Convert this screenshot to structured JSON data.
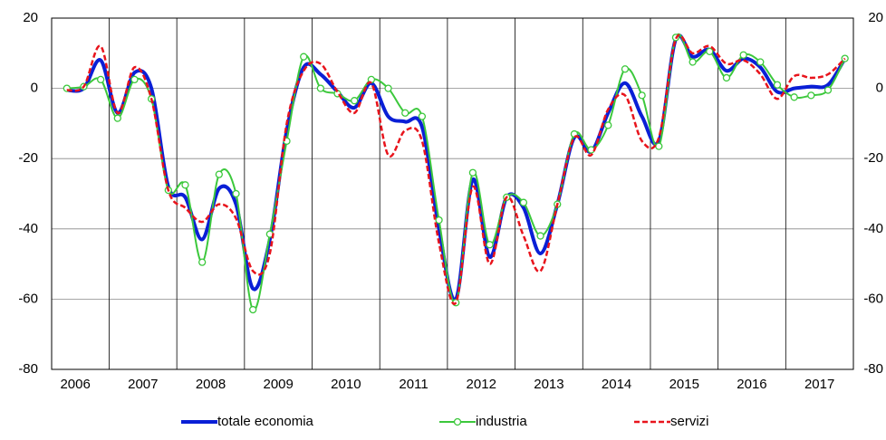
{
  "chart_data": {
    "type": "line",
    "x": [
      2006.375,
      2006.625,
      2006.875,
      2007.125,
      2007.375,
      2007.625,
      2007.875,
      2008.125,
      2008.375,
      2008.625,
      2008.875,
      2009.125,
      2009.375,
      2009.625,
      2009.875,
      2010.125,
      2010.375,
      2010.625,
      2010.875,
      2011.125,
      2011.375,
      2011.625,
      2011.875,
      2012.125,
      2012.375,
      2012.625,
      2012.875,
      2013.125,
      2013.375,
      2013.625,
      2013.875,
      2014.125,
      2014.375,
      2014.625,
      2014.875,
      2015.125,
      2015.375,
      2015.625,
      2015.875,
      2016.125,
      2016.375,
      2016.625,
      2016.875,
      2017.125,
      2017.375,
      2017.625,
      2017.875
    ],
    "series": [
      {
        "name": "totale economia",
        "color": "#0a1fd6",
        "width": 4,
        "dash": false,
        "markers": false,
        "values": [
          -0.5,
          0,
          8,
          -7,
          4.5,
          0,
          -28,
          -31,
          -43,
          -28.5,
          -33,
          -57,
          -43,
          -12,
          6,
          4,
          -1,
          -5.5,
          1.5,
          -8,
          -9.5,
          -11,
          -40,
          -60,
          -26,
          -48,
          -31,
          -34,
          -47,
          -33,
          -14,
          -18,
          -7,
          1.5,
          -8,
          -15,
          14,
          9,
          11,
          5,
          8.5,
          6,
          -1,
          0,
          0.5,
          1,
          8.5
        ]
      },
      {
        "name": "industria",
        "color": "#3cc83c",
        "width": 2,
        "dash": false,
        "markers": true,
        "values": [
          0,
          0.5,
          2.5,
          -8.5,
          2.5,
          -3,
          -29,
          -27.5,
          -49.5,
          -24.5,
          -30,
          -63,
          -41.5,
          -15,
          9,
          0,
          -1.5,
          -3.5,
          2.5,
          0,
          -7,
          -8,
          -37.5,
          -61,
          -24,
          -44.5,
          -31,
          -32.5,
          -42,
          -33,
          -13,
          -17.5,
          -10.5,
          5.5,
          -2,
          -16.5,
          14.5,
          7.5,
          10.5,
          3,
          9.5,
          7.5,
          1,
          -2.5,
          -2,
          -0.5,
          8.5
        ]
      },
      {
        "name": "servizi",
        "color": "#e8141c",
        "width": 2.5,
        "dash": true,
        "markers": false,
        "values": [
          -0.5,
          0.5,
          12,
          -7,
          6,
          -3,
          -29,
          -34,
          -38,
          -33,
          -37,
          -52,
          -47,
          -10,
          5,
          7,
          -1,
          -7,
          1.5,
          -19,
          -12,
          -15,
          -44,
          -61,
          -28,
          -50,
          -31,
          -42,
          -52,
          -33,
          -14,
          -19,
          -6,
          -2,
          -15,
          -14,
          14,
          10,
          12,
          7,
          8,
          4,
          -3,
          3.5,
          3,
          4,
          8.5
        ]
      }
    ],
    "xlim": [
      2006.15,
      2018
    ],
    "xticks": [
      {
        "value": 2006.5,
        "label": "2006"
      },
      {
        "value": 2007.5,
        "label": "2007"
      },
      {
        "value": 2008.5,
        "label": "2008"
      },
      {
        "value": 2009.5,
        "label": "2009"
      },
      {
        "value": 2010.5,
        "label": "2010"
      },
      {
        "value": 2011.5,
        "label": "2011"
      },
      {
        "value": 2012.5,
        "label": "2012"
      },
      {
        "value": 2013.5,
        "label": "2013"
      },
      {
        "value": 2014.5,
        "label": "2014"
      },
      {
        "value": 2015.5,
        "label": "2015"
      },
      {
        "value": 2016.5,
        "label": "2016"
      },
      {
        "value": 2017.5,
        "label": "2017"
      }
    ],
    "ylim": [
      -80,
      20
    ],
    "yticks": [
      -80,
      -60,
      -40,
      -20,
      0,
      20
    ],
    "y2lim": [
      -80,
      20
    ],
    "y2ticks": [
      -80,
      -60,
      -40,
      -20,
      0,
      20
    ],
    "grid": true,
    "legend": "bottom"
  }
}
